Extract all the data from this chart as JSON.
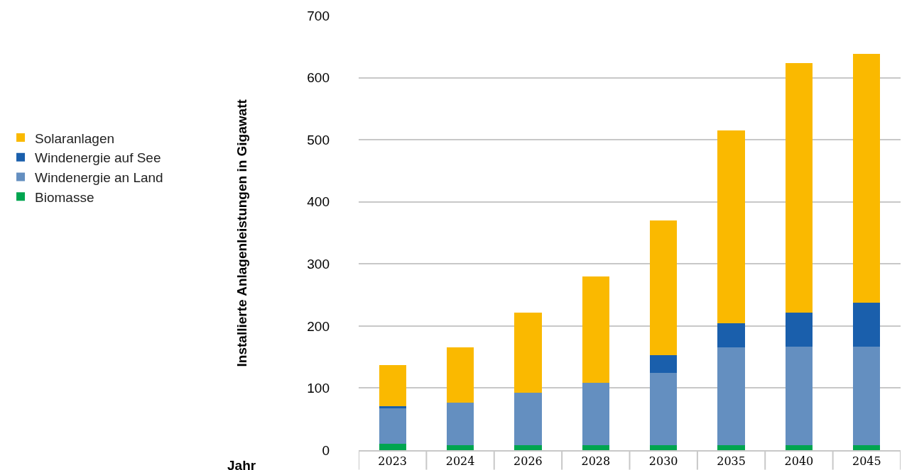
{
  "chart_data": {
    "type": "bar",
    "stacked": true,
    "ylabel": "Installierte Anlagenleistungen in Gigawatt",
    "xlabel": "Jahr",
    "categories": [
      "2023",
      "2024",
      "2026",
      "2028",
      "2030",
      "2035",
      "2040",
      "2045"
    ],
    "series": [
      {
        "name": "Biomasse",
        "color": "#00a54f",
        "values": [
          10,
          8,
          8,
          8,
          8,
          8,
          8,
          8
        ]
      },
      {
        "name": "Windenergie an Land",
        "color": "#648fc0",
        "values": [
          57,
          68,
          85,
          100,
          116,
          158,
          159,
          159
        ]
      },
      {
        "name": "Windenergie auf See",
        "color": "#1a5fac",
        "values": [
          4,
          0,
          0,
          0,
          29,
          38,
          55,
          71
        ]
      },
      {
        "name": "Solaranlagen",
        "color": "#fab900",
        "values": [
          66,
          90,
          128,
          172,
          217,
          311,
          402,
          400
        ]
      }
    ],
    "ylim": [
      0,
      700
    ],
    "yticks": [
      0,
      100,
      200,
      300,
      400,
      500,
      600,
      700
    ],
    "grid": "y",
    "legend": "left"
  }
}
